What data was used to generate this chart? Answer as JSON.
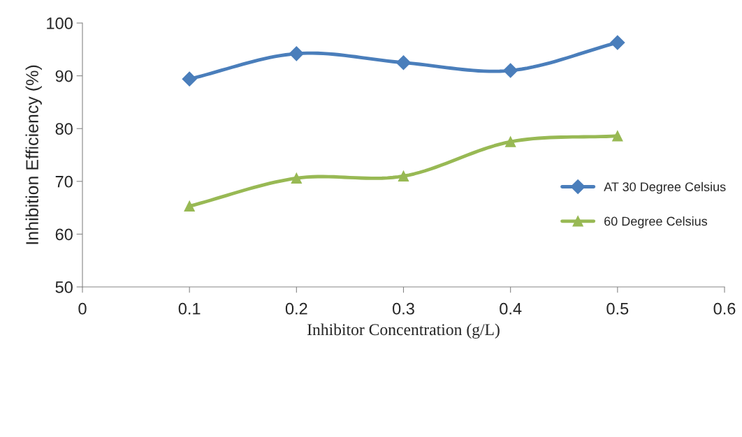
{
  "chart_data": {
    "type": "line",
    "xlabel": "Inhibitor Concentration (g/L)",
    "ylabel": "Inhibition Efficiency (%)",
    "x": [
      0.1,
      0.2,
      0.3,
      0.4,
      0.5
    ],
    "xlim": [
      0,
      0.6
    ],
    "xticks": [
      {
        "value": 0,
        "label": "0"
      },
      {
        "value": 0.1,
        "label": "0.1"
      },
      {
        "value": 0.2,
        "label": "0.2"
      },
      {
        "value": 0.3,
        "label": "0.3"
      },
      {
        "value": 0.4,
        "label": "0.4"
      },
      {
        "value": 0.5,
        "label": "0.5"
      },
      {
        "value": 0.6,
        "label": "0.6"
      }
    ],
    "ylim": [
      50,
      100
    ],
    "yticks": [
      50,
      60,
      70,
      80,
      90,
      100
    ],
    "grid": false,
    "legend": "right",
    "series": [
      {
        "name": "AT 30 Degree Celsius",
        "color": "#4a7ebb",
        "marker": "diamond",
        "values": [
          89.4,
          94.2,
          92.5,
          91.0,
          96.3
        ]
      },
      {
        "name": "60 Degree Celsius",
        "color": "#98b954",
        "marker": "triangle",
        "values": [
          65.3,
          70.6,
          71.0,
          77.5,
          78.6
        ]
      }
    ]
  }
}
